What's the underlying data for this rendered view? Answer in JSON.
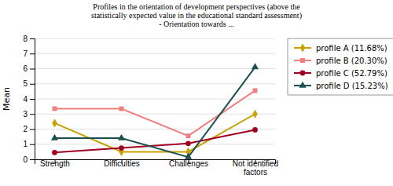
{
  "chart_data": {
    "type": "line",
    "title": "Profiles in the orientation of development perspectives (above the\nstatistically expected value in the educational standard assessment)\n- Orientation towards ...",
    "y_label": "Mean",
    "categories": [
      "Strength",
      "Difficulties",
      "Challenges",
      "Not identified\nfactors"
    ],
    "series": [
      {
        "name": "profile A (11.68%)",
        "color": "#C8A000",
        "marker": "diamond",
        "values": [
          2.4,
          0.5,
          0.5,
          3.0
        ]
      },
      {
        "name": "profile B (20.30%)",
        "color": "#F08080",
        "marker": "square",
        "values": [
          3.35,
          3.35,
          1.55,
          4.55
        ]
      },
      {
        "name": "profile C (52.79%)",
        "color": "#A00020",
        "marker": "circle",
        "values": [
          0.45,
          0.75,
          1.05,
          1.95
        ]
      },
      {
        "name": "profile D (15.23%)",
        "color": "#1A5050",
        "marker": "triangle",
        "values": [
          1.4,
          1.4,
          0.15,
          6.1
        ]
      }
    ],
    "ylim": [
      0,
      8
    ],
    "yticks": [
      0,
      1,
      2,
      3,
      4,
      5,
      6,
      7,
      8
    ],
    "grid": true,
    "legend": "right"
  }
}
